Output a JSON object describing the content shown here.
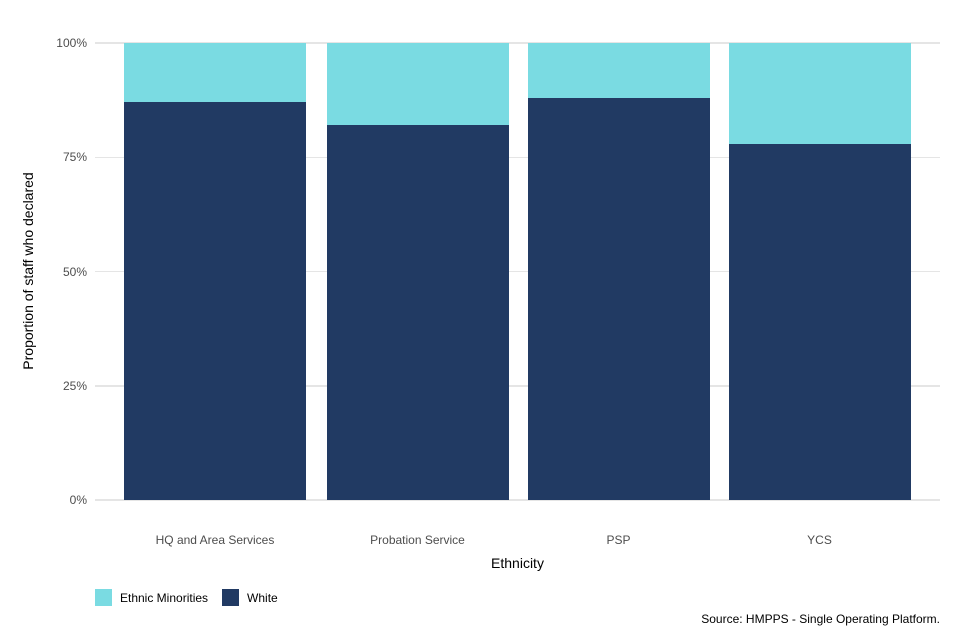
{
  "chart_data": {
    "type": "bar",
    "stacked": true,
    "orientation": "vertical",
    "title": "",
    "xlabel": "Ethnicity",
    "ylabel": "Proportion of staff who declared",
    "categories": [
      "HQ and Area Services",
      "Probation Service",
      "PSP",
      "YCS"
    ],
    "series": [
      {
        "name": "White",
        "color": "#213A63",
        "values": [
          87,
          82,
          88,
          78
        ]
      },
      {
        "name": "Ethnic Minorities",
        "color": "#7ADBE2",
        "values": [
          13,
          18,
          12,
          22
        ]
      }
    ],
    "legend": [
      {
        "label": "Ethnic Minorities",
        "color": "#7ADBE2"
      },
      {
        "label": "White",
        "color": "#213A63"
      }
    ],
    "legend_position": "bottom-left",
    "y_ticks": [
      {
        "value": 0,
        "label": "0%"
      },
      {
        "value": 25,
        "label": "25%"
      },
      {
        "value": 50,
        "label": "50%"
      },
      {
        "value": 75,
        "label": "75%"
      },
      {
        "value": 100,
        "label": "100%"
      }
    ],
    "ylim": [
      0,
      100
    ],
    "grid": true,
    "source_note": "Source: HMPPS - Single Operating Platform."
  },
  "colors": {
    "ethnic_minorities": "#7ADBE2",
    "white": "#213A63",
    "gridline": "#E5E5E5",
    "tick_label": "#4D4D4D",
    "axis_title": "#000000",
    "background": "#FFFFFF"
  }
}
